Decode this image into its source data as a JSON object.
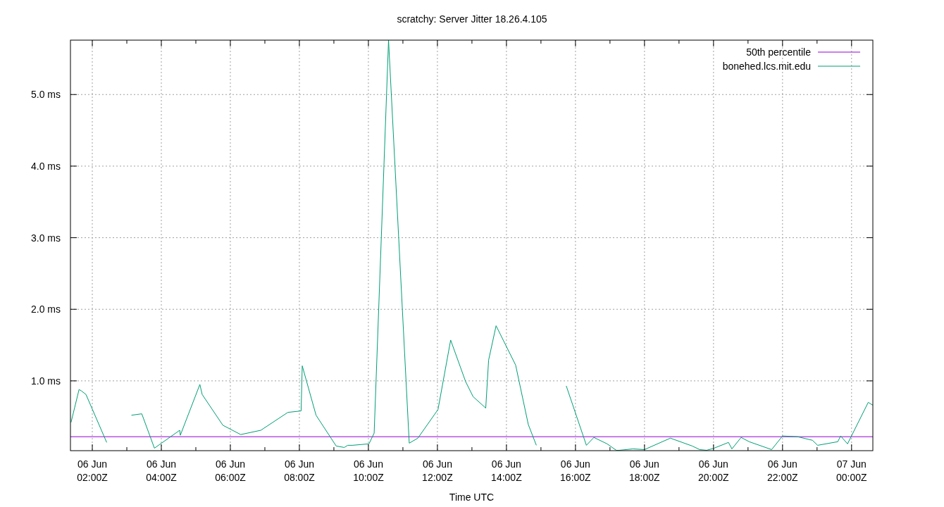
{
  "chart_data": {
    "type": "line",
    "title": "scratchy: Server Jitter 18.26.4.105",
    "xlabel": "Time UTC",
    "xlim": [
      "--06-06T01:22",
      "--06-07T00:37"
    ],
    "ylim": [
      0.025,
      5.76
    ],
    "xticks": [
      {
        "value": "--06-06T02:00",
        "label": "06 Jun\n02:00Z"
      },
      {
        "value": "--06-06T03:00",
        "label": null
      },
      {
        "value": "--06-06T04:00",
        "label": "06 Jun\n04:00Z"
      },
      {
        "value": "--06-06T05:00",
        "label": null
      },
      {
        "value": "--06-06T06:00",
        "label": "06 Jun\n06:00Z"
      },
      {
        "value": "--06-06T07:00",
        "label": null
      },
      {
        "value": "--06-06T08:00",
        "label": "06 Jun\n08:00Z"
      },
      {
        "value": "--06-06T09:00",
        "label": null
      },
      {
        "value": "--06-06T10:00",
        "label": "06 Jun\n10:00Z"
      },
      {
        "value": "--06-06T11:00",
        "label": null
      },
      {
        "value": "--06-06T12:00",
        "label": "06 Jun\n12:00Z"
      },
      {
        "value": "--06-06T13:00",
        "label": null
      },
      {
        "value": "--06-06T14:00",
        "label": "06 Jun\n14:00Z"
      },
      {
        "value": "--06-06T15:00",
        "label": null
      },
      {
        "value": "--06-06T16:00",
        "label": "06 Jun\n16:00Z"
      },
      {
        "value": "--06-06T17:00",
        "label": null
      },
      {
        "value": "--06-06T18:00",
        "label": "06 Jun\n18:00Z"
      },
      {
        "value": "--06-06T19:00",
        "label": null
      },
      {
        "value": "--06-06T20:00",
        "label": "06 Jun\n20:00Z"
      },
      {
        "value": "--06-06T21:00",
        "label": null
      },
      {
        "value": "--06-06T22:00",
        "label": "06 Jun\n22:00Z"
      },
      {
        "value": "--06-06T23:00",
        "label": null
      },
      {
        "value": "--06-07T00:00",
        "label": "07 Jun\n00:00Z"
      }
    ],
    "yticks": [
      {
        "value": 1,
        "label": "1.0 ms"
      },
      {
        "value": 2,
        "label": "2.0 ms"
      },
      {
        "value": 3,
        "label": "3.0 ms"
      },
      {
        "value": 4,
        "label": "4.0 ms"
      },
      {
        "value": 5,
        "label": "5.0 ms"
      }
    ],
    "grid": true,
    "legend": "top right",
    "marker": "none",
    "line_style": "solid",
    "series": [
      {
        "name": "50th percentile",
        "color": "#9400d3",
        "x": [
          "--06-06T01:22",
          "--06-07T00:37"
        ],
        "values": [
          0.22,
          0.22
        ]
      },
      {
        "name": "bonehed.lcs.mit.edu",
        "color": "#009e73",
        "x": [
          "--06-06T01:23",
          "--06-06T01:37",
          "--06-06T01:41",
          "--06-06T01:49",
          "--06-06T02:25",
          "--06-06T02:48",
          "--06-06T03:08",
          "--06-06T03:26",
          "--06-06T03:48",
          "--06-06T04:32",
          "--06-06T04:33",
          "--06-06T05:07",
          "--06-06T05:11",
          "--06-06T05:47",
          "--06-06T06:18",
          "--06-06T06:53",
          "--06-06T07:40",
          "--06-06T08:03",
          "--06-06T08:05",
          "--06-06T08:29",
          "--06-06T09:04",
          "--06-06T09:18",
          "--06-06T09:24",
          "--06-06T09:32",
          "--06-06T10:01",
          "--06-06T10:10",
          "--06-06T10:35",
          "--06-06T11:11",
          "--06-06T11:26",
          "--06-06T12:01",
          "--06-06T12:23",
          "--06-06T12:49",
          "--06-06T13:02",
          "--06-06T13:24",
          "--06-06T13:29",
          "--06-06T13:42",
          "--06-06T14:16",
          "--06-06T14:38",
          "--06-06T14:52",
          "--06-06T15:18",
          "--06-06T15:44",
          "--06-06T16:19",
          "--06-06T16:32",
          "--06-06T16:55",
          "--06-06T17:11",
          "--06-06T17:16",
          "--06-06T17:40",
          "--06-06T18:00",
          "--06-06T18:45",
          "--06-06T19:23",
          "--06-06T19:36",
          "--06-06T19:48",
          "--06-06T20:01",
          "--06-06T20:26",
          "--06-06T20:32",
          "--06-06T20:48",
          "--06-06T21:02",
          "--06-06T21:41",
          "--06-06T22:00",
          "--06-06T22:26",
          "--06-06T22:52",
          "--06-06T23:01",
          "--06-06T23:36",
          "--06-06T23:41",
          "--06-06T23:53",
          "--06-07T00:29",
          "--06-07T00:37"
        ],
        "values": [
          0.42,
          0.88,
          0.86,
          0.81,
          0.14,
          null,
          0.52,
          0.54,
          0.06,
          0.31,
          0.24,
          0.95,
          0.81,
          0.38,
          0.25,
          0.31,
          0.56,
          0.58,
          1.21,
          0.52,
          0.09,
          0.07,
          0.1,
          0.1,
          0.12,
          0.27,
          5.76,
          0.13,
          0.2,
          0.6,
          1.57,
          0.99,
          0.78,
          0.62,
          1.29,
          1.77,
          1.22,
          0.39,
          0.1,
          null,
          0.93,
          0.1,
          0.21,
          0.12,
          0.03,
          0.03,
          0.05,
          0.04,
          0.2,
          0.09,
          0.04,
          0.03,
          0.06,
          0.14,
          0.05,
          0.21,
          0.15,
          0.04,
          0.23,
          0.22,
          0.17,
          0.1,
          0.15,
          0.23,
          0.12,
          0.7,
          0.66
        ]
      }
    ]
  }
}
